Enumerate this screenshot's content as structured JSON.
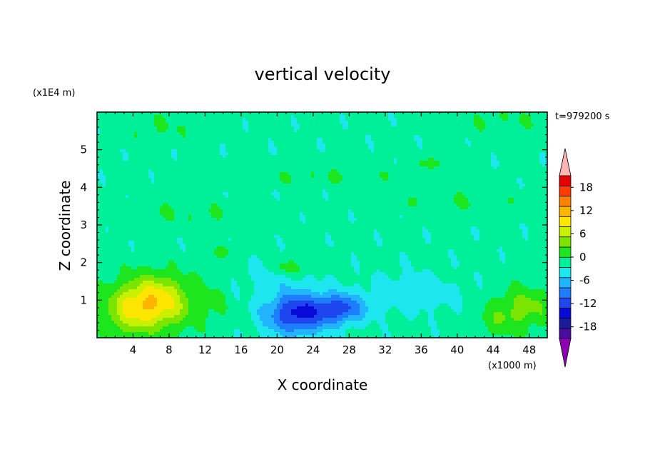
{
  "chart_data": {
    "type": "heatmap",
    "title": "vertical velocity",
    "xlabel": "X coordinate",
    "ylabel": "Z coordinate",
    "x_unit": "(x1000 m)",
    "y_unit": "(x1E4 m)",
    "time_label": "t=979200 s",
    "xlim": [
      0,
      50
    ],
    "ylim": [
      0,
      6
    ],
    "x_ticks": [
      "4",
      "8",
      "12",
      "16",
      "20",
      "24",
      "28",
      "32",
      "36",
      "40",
      "44",
      "48"
    ],
    "x_tick_values": [
      4,
      8,
      12,
      16,
      20,
      24,
      28,
      32,
      36,
      40,
      44,
      48
    ],
    "y_ticks": [
      "1",
      "2",
      "3",
      "4",
      "5"
    ],
    "y_tick_values": [
      1,
      2,
      3,
      4,
      5
    ],
    "colorbar": {
      "levels": [
        -21,
        -18,
        -15,
        -12,
        -9,
        -6,
        -3,
        0,
        3,
        6,
        9,
        12,
        15,
        18,
        21
      ],
      "labels": [
        "18",
        "12",
        "6",
        "0",
        "-6",
        "-12",
        "-18"
      ],
      "label_values": [
        18,
        12,
        6,
        0,
        -6,
        -12,
        -18
      ],
      "colors": [
        "#4a0ca0",
        "#1a1a9a",
        "#0a0ad8",
        "#1e46ee",
        "#1e7cff",
        "#22b4ff",
        "#1ee6ee",
        "#00f09a",
        "#1ee61e",
        "#7ae600",
        "#c8f000",
        "#ffe600",
        "#ffb400",
        "#ff8200",
        "#ff3c00",
        "#e60000"
      ],
      "under_color": "#8c00b4",
      "over_color": "#ffb4b4"
    },
    "features": [
      {
        "x": 6.2,
        "z": 0.95,
        "value": 14,
        "sx": 4.2,
        "sz": 0.7
      },
      {
        "x": 3.0,
        "z": 0.5,
        "value": 4,
        "sx": 3.0,
        "sz": 0.6
      },
      {
        "x": 13.0,
        "z": 0.8,
        "value": 2,
        "sx": 1.6,
        "sz": 0.6
      },
      {
        "x": 22.3,
        "z": 0.65,
        "value": -14,
        "sx": 3.5,
        "sz": 0.55
      },
      {
        "x": 27.2,
        "z": 0.78,
        "value": -10,
        "sx": 2.6,
        "sz": 0.38
      },
      {
        "x": 35.0,
        "z": 1.2,
        "value": -3,
        "sx": 5.0,
        "sz": 0.5
      },
      {
        "x": 19.5,
        "z": 1.7,
        "value": -3,
        "sx": 3.2,
        "sz": 0.35
      },
      {
        "x": 21.0,
        "z": 1.85,
        "value": 5,
        "sx": 2.2,
        "sz": 0.22
      },
      {
        "x": 47.5,
        "z": 0.8,
        "value": 6,
        "sx": 3.2,
        "sz": 0.6
      },
      {
        "x": 44.0,
        "z": 0.4,
        "value": 3,
        "sx": 2.5,
        "sz": 0.45
      },
      {
        "x": 14.0,
        "z": 2.3,
        "value": 3,
        "sx": 1.0,
        "sz": 0.2
      },
      {
        "x": 37.0,
        "z": 4.65,
        "value": 4,
        "sx": 1.5,
        "sz": 0.12
      },
      {
        "x": 7.0,
        "z": 5.6,
        "value": 2,
        "sx": 5.0,
        "sz": 0.4
      },
      {
        "x": 45.0,
        "z": 5.8,
        "value": 2,
        "sx": 6.0,
        "sz": 0.4
      },
      {
        "x": 25.0,
        "z": 4.3,
        "value": 2,
        "sx": 12.0,
        "sz": 0.25
      },
      {
        "x": 10.0,
        "z": 3.3,
        "value": 2,
        "sx": 8.0,
        "sz": 0.35
      },
      {
        "x": 40.0,
        "z": 3.6,
        "value": 2,
        "sx": 8.0,
        "sz": 0.3
      }
    ]
  }
}
